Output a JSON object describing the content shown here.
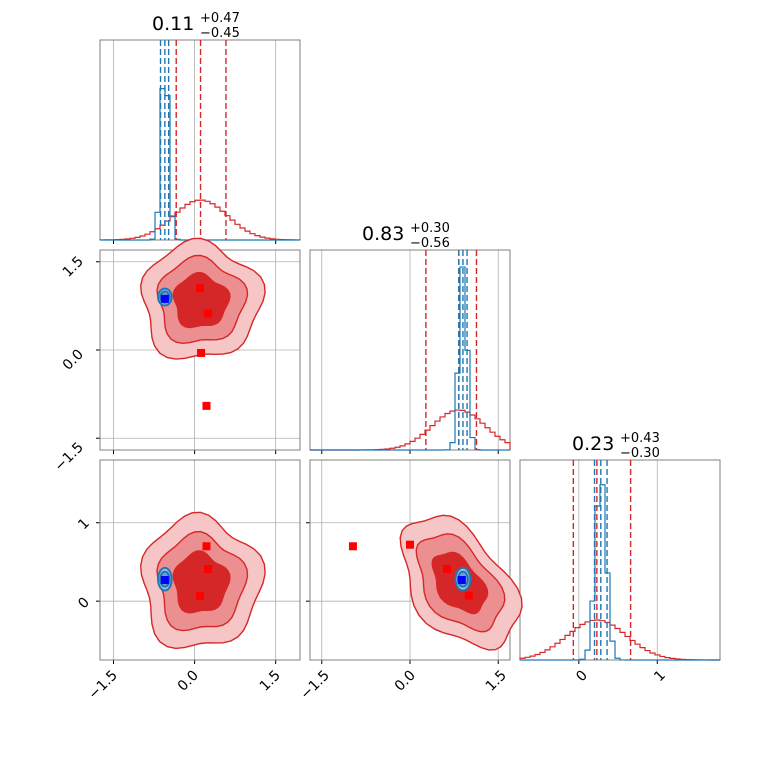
{
  "colors": {
    "red": "#d62728",
    "red_fill_outer": "#f6c5c6",
    "red_fill_mid": "#ec8f91",
    "red_fill_inner": "#d62728",
    "blue_line": "#1f77b4",
    "blue_marker": "#0000ff",
    "red_marker": "#ff0000",
    "grid": "#b0b0b0",
    "axis": "#808080"
  },
  "titles": [
    {
      "value": "0.11",
      "plus": "+0.47",
      "minus": "−0.45"
    },
    {
      "value": "0.83",
      "plus": "+0.30",
      "minus": "−0.56"
    },
    {
      "value": "0.23",
      "plus": "+0.43",
      "minus": "−0.30"
    }
  ],
  "ticks": {
    "p0": [
      "−1.5",
      "0.0",
      "1.5"
    ],
    "p1": [
      "−1.5",
      "0.0",
      "1.5"
    ],
    "p2": [
      "0",
      "1"
    ]
  },
  "chart_data": {
    "type": "corner",
    "parameters": [
      "p0",
      "p1",
      "p2"
    ],
    "ranges": {
      "p0": [
        -1.75,
        1.95
      ],
      "p1": [
        -1.7,
        1.7
      ],
      "p2": [
        -0.75,
        1.8
      ]
    },
    "grid": true,
    "series": [
      {
        "color": "red",
        "means": [
          0.11,
          0.83,
          0.23
        ],
        "sigmas": [
          0.5,
          0.45,
          0.38
        ],
        "quantiles": [
          [
            -0.34,
            0.58
          ],
          [
            0.27,
            1.13
          ],
          [
            -0.07,
            0.66
          ]
        ],
        "markers": [
          {
            "pair": "p1-p0",
            "points": [
              [
                0.1,
                1.05
              ],
              [
                0.25,
                0.62
              ],
              [
                0.12,
                -0.05
              ],
              [
                0.22,
                -0.95
              ]
            ]
          },
          {
            "pair": "p2-p0",
            "points": [
              [
                0.22,
                0.7
              ],
              [
                0.25,
                0.41
              ],
              [
                0.1,
                0.07
              ]
            ]
          },
          {
            "pair": "p2-p1",
            "points": [
              [
                -0.97,
                0.7
              ],
              [
                0.0,
                0.72
              ],
              [
                0.63,
                0.41
              ],
              [
                1.0,
                0.07
              ]
            ]
          }
        ]
      },
      {
        "color": "blue",
        "means": [
          -0.55,
          0.9,
          0.28
        ],
        "sigmas": [
          0.05,
          0.05,
          0.05
        ],
        "quantiles": [
          [
            -0.63,
            -0.48
          ],
          [
            0.83,
            0.97
          ],
          [
            0.2,
            0.36
          ]
        ],
        "markers": [
          {
            "pair": "p1-p0",
            "points": [
              [
                -0.55,
                0.87
              ]
            ]
          },
          {
            "pair": "p2-p0",
            "points": [
              [
                -0.55,
                0.27
              ]
            ]
          },
          {
            "pair": "p2-p1",
            "points": [
              [
                0.88,
                0.27
              ]
            ]
          }
        ]
      }
    ]
  }
}
